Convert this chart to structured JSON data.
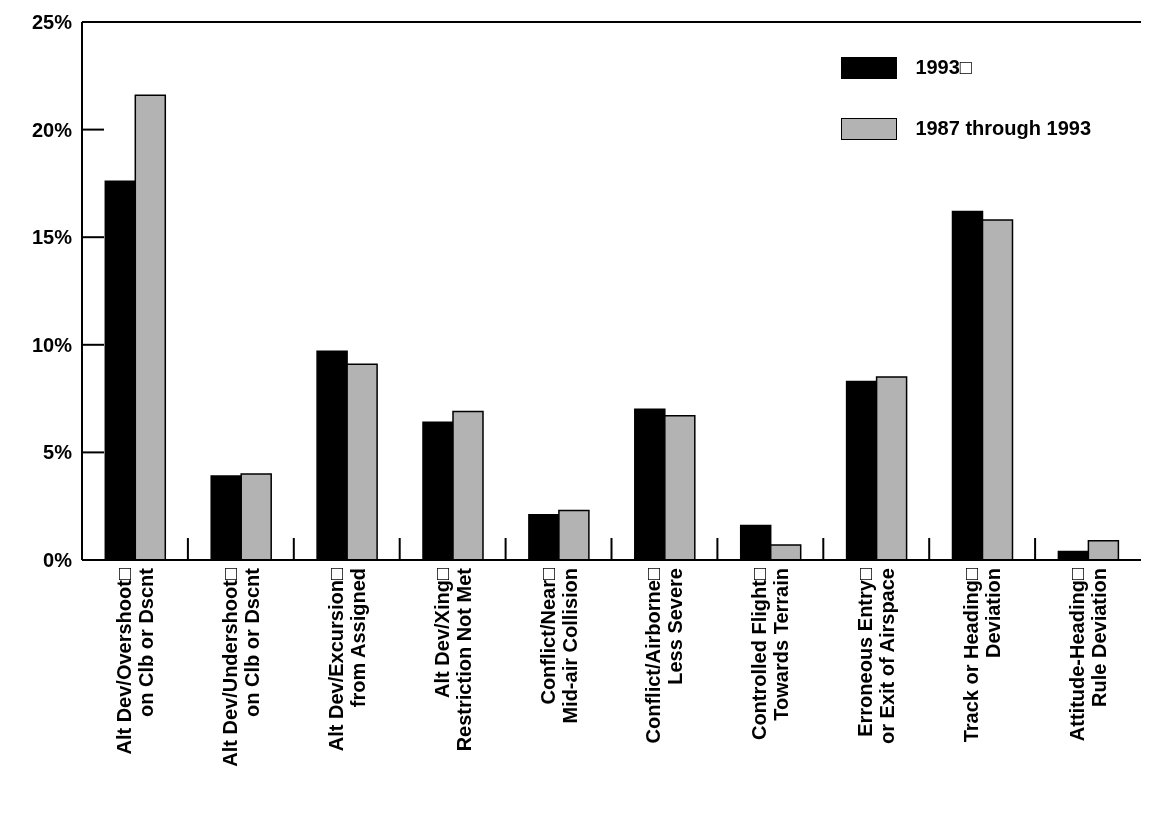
{
  "chart_data": {
    "type": "bar",
    "categories": [
      "Alt Dev/Overshoot□\non Clb or Dscnt",
      "Alt Dev/Undershoot□\non Clb or Dscnt",
      "Alt Dev/Excursion□\nfrom Assigned",
      "Alt Dev/Xing□\nRestriction Not Met",
      "Conflict/Near□\nMid-air Collision",
      "Conflict/Airborne□\nLess Severe",
      "Controlled Flight□\nTowards Terrain",
      "Erroneous Entry□\nor Exit of Airspace",
      "Track or Heading□\nDeviation",
      "Attitude-Heading□\nRule Deviation"
    ],
    "series": [
      {
        "name": "1993□",
        "color": "#000000",
        "values": [
          17.6,
          3.9,
          9.7,
          6.4,
          2.1,
          7.0,
          1.6,
          8.3,
          16.2,
          0.4
        ]
      },
      {
        "name": "1987 through 1993",
        "color": "#b3b3b3",
        "values": [
          21.6,
          4.0,
          9.1,
          6.9,
          2.3,
          6.7,
          0.7,
          8.5,
          15.8,
          0.9
        ]
      }
    ],
    "ylim": [
      0,
      25
    ],
    "yticks": [
      {
        "value": 0,
        "label": "0%"
      },
      {
        "value": 5,
        "label": "5%"
      },
      {
        "value": 10,
        "label": "10%"
      },
      {
        "value": 15,
        "label": "15%"
      },
      {
        "value": 20,
        "label": "20%"
      },
      {
        "value": 25,
        "label": "25%"
      }
    ],
    "legend": "top right",
    "grid": false
  }
}
